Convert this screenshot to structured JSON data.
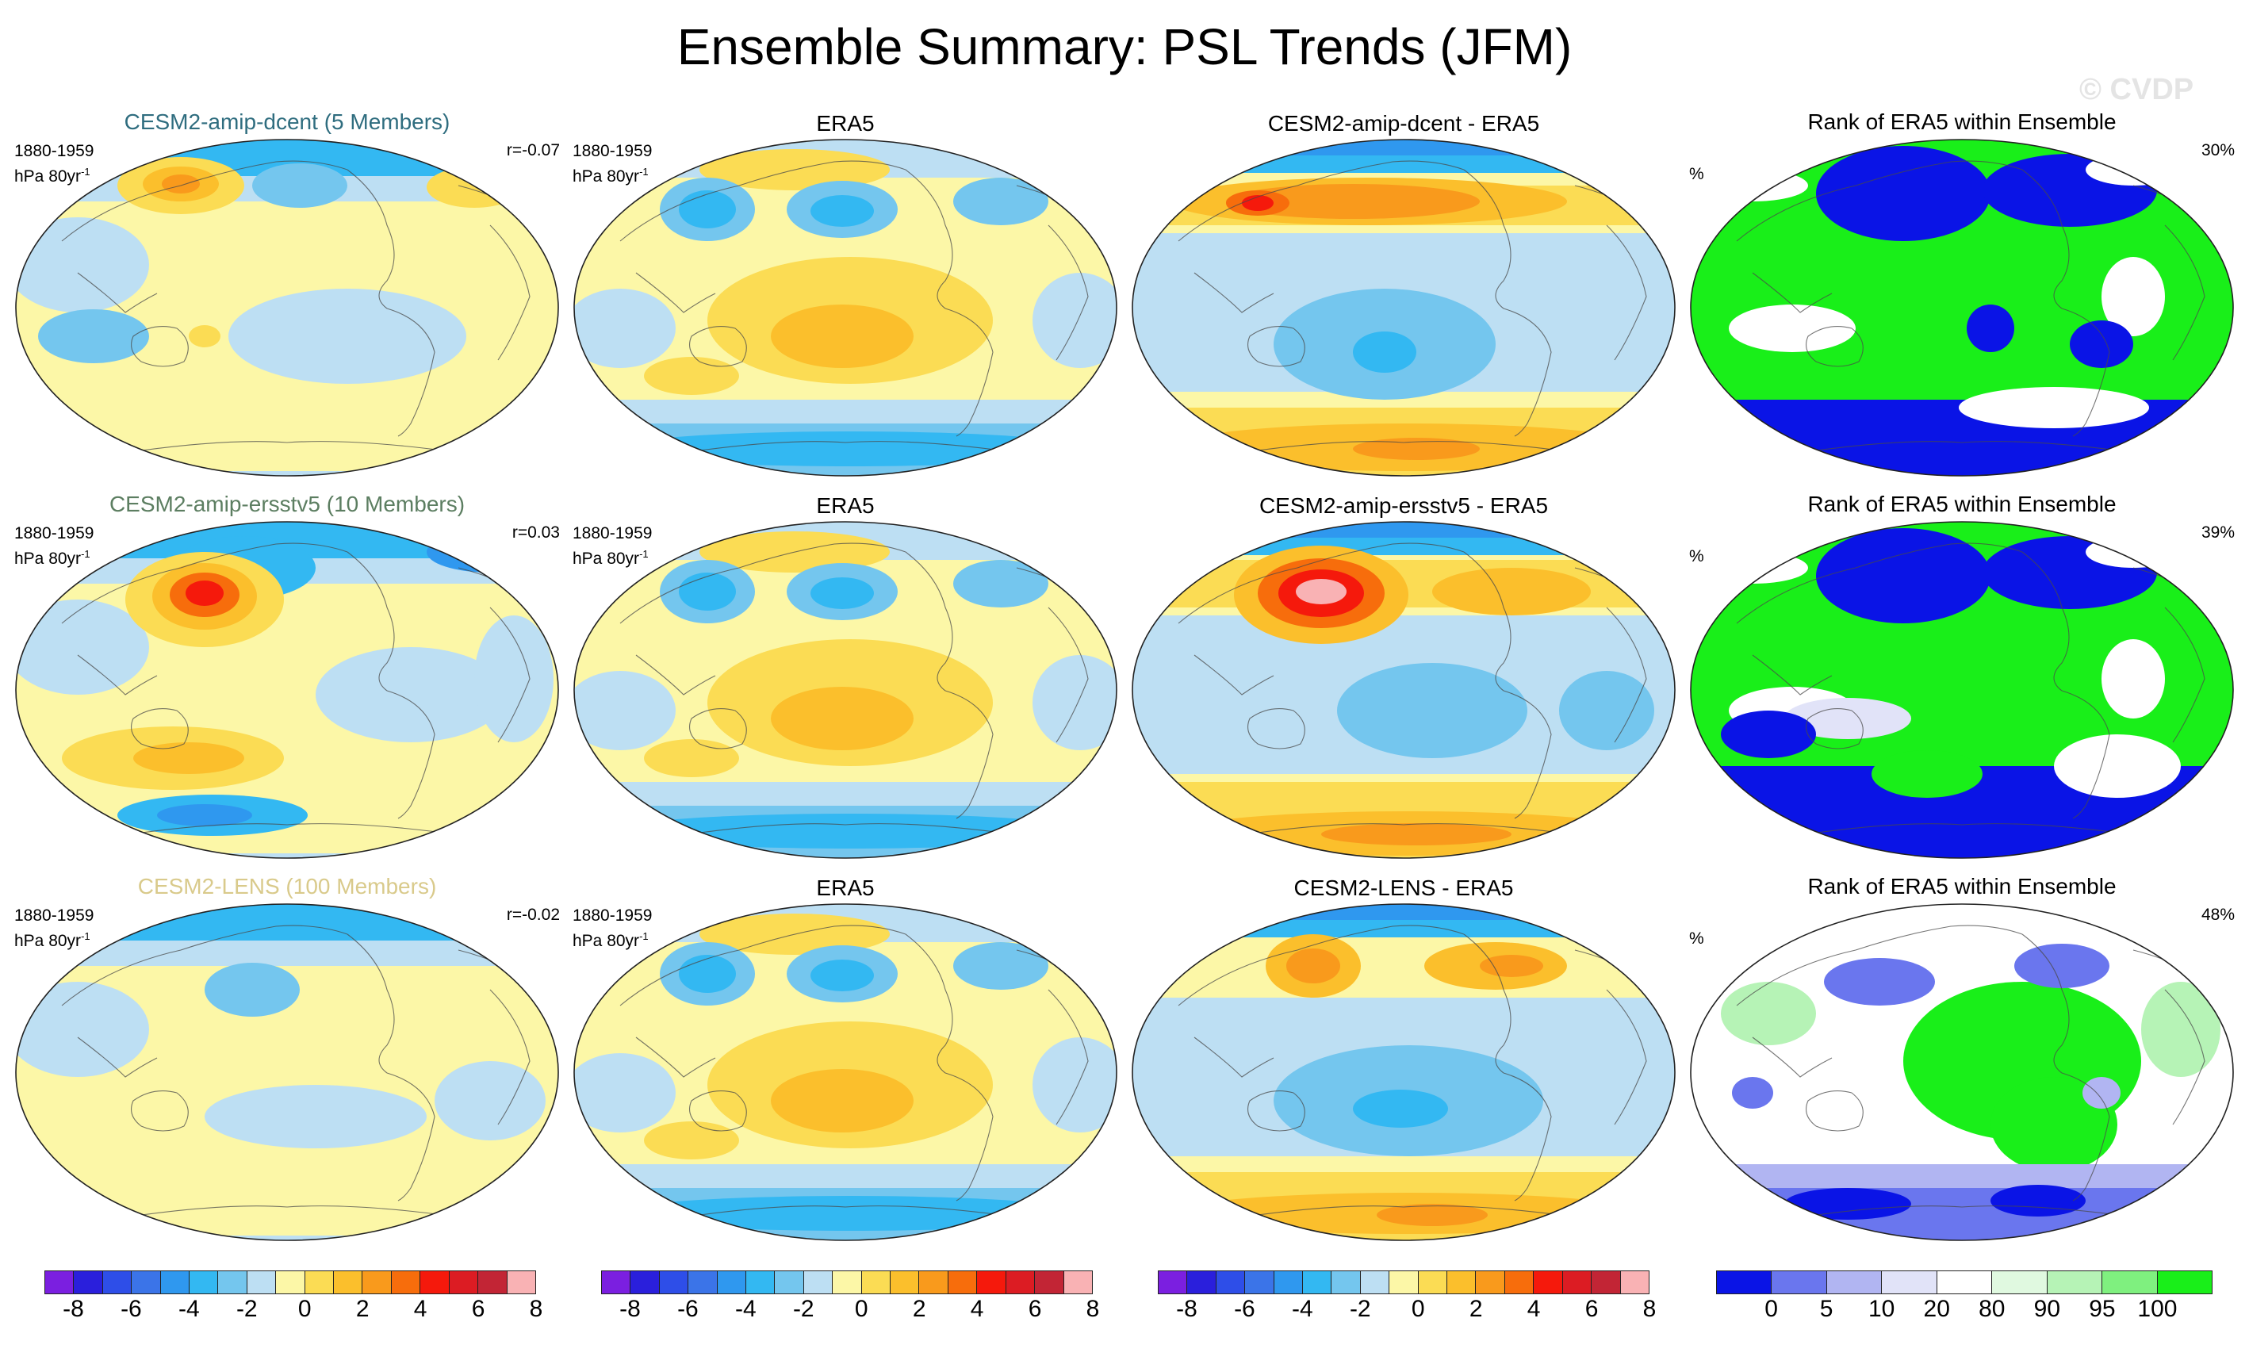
{
  "title": "Ensemble Summary: PSL Trends (JFM)",
  "watermark": "© CVDP",
  "map_meta": {
    "period": "1880-1959",
    "units": "hPa 80yr",
    "units_exp": "-1",
    "rank_units": "%"
  },
  "colors": {
    "trend_palette": [
      "#7b1fe0",
      "#2a1fdc",
      "#2e4ee8",
      "#3b74e8",
      "#2f98ef",
      "#33b8f2",
      "#74c6ee",
      "#bddff3",
      "#fcf7a7",
      "#fbdc54",
      "#fbbf2c",
      "#f99a1c",
      "#f76d0c",
      "#f5190c",
      "#dc1c23",
      "#c22535",
      "#f9b2b4"
    ],
    "rank_palette": [
      "#0a14e6",
      "#6a76ee",
      "#b1b5f2",
      "#e1e3f8",
      "#ffffff",
      "#e0f9e0",
      "#b6f3b6",
      "#7ff07f",
      "#19ef19"
    ],
    "title_model_row1": "#2f6d7f",
    "title_model_row2": "#5c7e61",
    "title_model_row3": "#d9ca8b"
  },
  "rows": [
    {
      "model_title": "CESM2-amip-dcent (5 Members)",
      "pattern_corr": "r=-0.07",
      "obs_title": "ERA5",
      "diff_title": "CESM2-amip-dcent - ERA5",
      "rank_title": "Rank of ERA5 within Ensemble",
      "rank_pct": "30%"
    },
    {
      "model_title": "CESM2-amip-ersstv5 (10 Members)",
      "pattern_corr": "r=0.03",
      "obs_title": "ERA5",
      "diff_title": "CESM2-amip-ersstv5 - ERA5",
      "rank_title": "Rank of ERA5 within Ensemble",
      "rank_pct": "39%"
    },
    {
      "model_title": "CESM2-LENS (100 Members)",
      "pattern_corr": "r=-0.02",
      "obs_title": "ERA5",
      "diff_title": "CESM2-LENS - ERA5",
      "rank_title": "Rank of ERA5 within Ensemble",
      "rank_pct": "48%"
    }
  ],
  "colorbars": {
    "trend_labels": [
      "-8",
      "-6",
      "-4",
      "-2",
      "0",
      "2",
      "4",
      "6",
      "8"
    ],
    "rank_labels": [
      "0",
      "5",
      "10",
      "20",
      "80",
      "90",
      "95",
      "100"
    ]
  }
}
